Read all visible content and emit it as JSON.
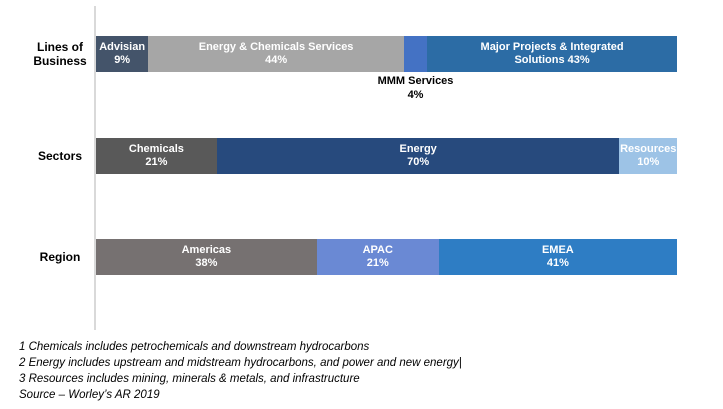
{
  "chart_data": {
    "type": "bar",
    "subtype": "horizontal-stacked-percent",
    "unit": "%",
    "axis_color": "#D9D9D9",
    "xlim": [
      0,
      100
    ],
    "legend": "none",
    "rows": [
      {
        "label": "Lines of Business",
        "segments": [
          {
            "name": "Advisian",
            "value": 9,
            "label_line1": "Advisian",
            "label_line2": "9%",
            "color": "#44546A",
            "label_color": "#FFFFFF",
            "label_placement": "inside"
          },
          {
            "name": "Energy & Chemicals Services",
            "value": 44,
            "label_line1": "Energy & Chemicals Services",
            "label_line2": "44%",
            "color": "#A6A6A6",
            "label_color": "#FFFFFF",
            "label_placement": "inside"
          },
          {
            "name": "MMM Services",
            "value": 4,
            "label_line1": "MMM Services",
            "label_line2": "4%",
            "color": "#4472C4",
            "label_color": "#000000",
            "label_placement": "below"
          },
          {
            "name": "Major Projects & Integrated Solutions",
            "value": 43,
            "label_line1": "Major Projects & Integrated",
            "label_line2": "Solutions 43%",
            "color": "#2C6CA5",
            "label_color": "#FFFFFF",
            "label_placement": "inside"
          }
        ]
      },
      {
        "label": "Sectors",
        "segments": [
          {
            "name": "Chemicals",
            "value": 21,
            "label_line1": "Chemicals",
            "label_line2": "21%",
            "color": "#595959",
            "label_color": "#FFFFFF",
            "label_placement": "inside"
          },
          {
            "name": "Energy",
            "value": 70,
            "label_line1": "Energy",
            "label_line2": "70%",
            "color": "#274A7D",
            "label_color": "#FFFFFF",
            "label_placement": "inside"
          },
          {
            "name": "Resources",
            "value": 10,
            "label_line1": "Resources",
            "label_line2": "10%",
            "color": "#9DC3E6",
            "label_color": "#FFFFFF",
            "label_placement": "inside"
          }
        ]
      },
      {
        "label": "Region",
        "segments": [
          {
            "name": "Americas",
            "value": 38,
            "label_line1": "Americas",
            "label_line2": "38%",
            "color": "#767171",
            "label_color": "#FFFFFF",
            "label_placement": "inside"
          },
          {
            "name": "APAC",
            "value": 21,
            "label_line1": "APAC",
            "label_line2": "21%",
            "color": "#6A89D4",
            "label_color": "#FFFFFF",
            "label_placement": "inside"
          },
          {
            "name": "EMEA",
            "value": 41,
            "label_line1": "EMEA",
            "label_line2": "41%",
            "color": "#2E7DC4",
            "label_color": "#FFFFFF",
            "label_placement": "inside"
          }
        ]
      }
    ],
    "footnotes": [
      "1 Chemicals includes petrochemicals and downstream hydrocarbons",
      "2 Energy includes upstream and midstream hydrocarbons, and power and new energy|",
      "3 Resources includes mining, minerals & metals, and infrastructure"
    ],
    "source": "Source – Worley’s AR 2019"
  }
}
